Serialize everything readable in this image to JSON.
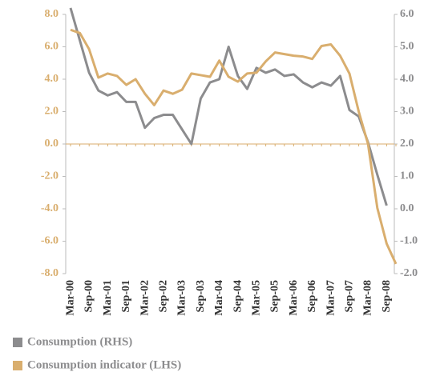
{
  "chart_data": {
    "type": "line",
    "categories": [
      "Mar-00",
      null,
      "Sep-00",
      null,
      "Mar-01",
      null,
      "Sep-01",
      null,
      "Mar-02",
      null,
      "Sep-02",
      null,
      "Mar-03",
      null,
      "Sep-03",
      null,
      "Mar-04",
      null,
      "Sep-04",
      null,
      "Mar-05",
      null,
      "Sep-05",
      null,
      "Mar-06",
      null,
      "Sep-06",
      null,
      "Mar-07",
      null,
      "Sep-07",
      null,
      "Mar-08",
      null,
      "Sep-08",
      null
    ],
    "series": [
      {
        "name": "Consumption (RHS)",
        "color": "#8c8c8e",
        "axis": "y2",
        "values": [
          6.2,
          5.2,
          4.2,
          3.65,
          3.5,
          3.6,
          3.3,
          3.3,
          2.5,
          2.8,
          2.9,
          2.9,
          2.45,
          2.0,
          3.4,
          3.9,
          4.0,
          5.0,
          4.1,
          3.7,
          4.35,
          4.2,
          4.3,
          4.1,
          4.15,
          3.9,
          3.75,
          3.9,
          3.8,
          4.1,
          3.05,
          2.85,
          2.05,
          1.05,
          0.1,
          null
        ]
      },
      {
        "name": "Consumption indicator (LHS)",
        "color": "#d9ae6e",
        "values": [
          7.05,
          6.85,
          5.85,
          4.1,
          4.35,
          4.2,
          3.65,
          4.0,
          3.1,
          2.4,
          3.3,
          3.1,
          3.35,
          4.35,
          4.25,
          4.15,
          5.15,
          4.15,
          3.85,
          4.35,
          4.4,
          5.1,
          5.65,
          5.55,
          5.45,
          5.4,
          5.25,
          6.05,
          6.15,
          5.45,
          4.35,
          2.0,
          0,
          -3.95,
          -6.15,
          -7.4
        ]
      }
    ],
    "ylim": [
      -8,
      8
    ],
    "yticks": [
      {
        "value": 8,
        "label": "8.0"
      },
      {
        "value": 6,
        "label": "6.0"
      },
      {
        "value": 4,
        "label": "4.0"
      },
      {
        "value": 2,
        "label": "2.0"
      },
      {
        "value": 0,
        "label": "0.0"
      },
      {
        "value": -2,
        "label": "-2.0"
      },
      {
        "value": -4,
        "label": "-4.0"
      },
      {
        "value": -6,
        "label": "-6.0"
      },
      {
        "value": -8,
        "label": "-8.0"
      }
    ],
    "y2lim": [
      -2,
      6
    ],
    "y2ticks": [
      {
        "value": 6,
        "label": "6.0"
      },
      {
        "value": 5,
        "label": "5.0"
      },
      {
        "value": 4,
        "label": "4.0"
      },
      {
        "value": 3,
        "label": "3.0"
      },
      {
        "value": 2,
        "label": "2.0"
      },
      {
        "value": 1,
        "label": "1.0"
      },
      {
        "value": 0,
        "label": "0.0"
      },
      {
        "value": -1,
        "label": "-1.0"
      },
      {
        "value": -2,
        "label": "-2.0"
      }
    ]
  }
}
